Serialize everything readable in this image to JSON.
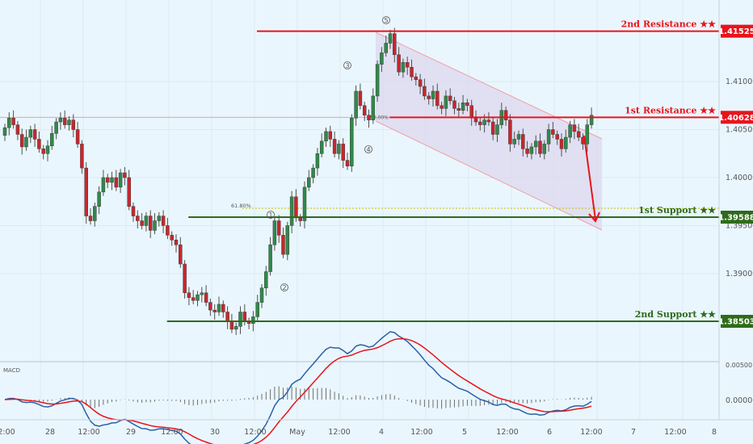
{
  "chart_data": {
    "type": "candlestick",
    "price_axis": {
      "min": 1.3815,
      "max": 1.4185,
      "ticks": [
        "1.41000",
        "1.40500",
        "1.40000",
        "1.39500",
        "1.39000"
      ]
    },
    "time_axis": {
      "labels": [
        "2:00",
        "28",
        "12:00",
        "29",
        "12:00",
        "30",
        "12:00",
        "May",
        "12:00",
        "4",
        "12:00",
        "5",
        "12:00",
        "6",
        "12:00",
        "7",
        "12:00",
        "8"
      ]
    },
    "levels": [
      {
        "name": "2nd Resistance ★★",
        "value": 1.41525,
        "label": "1.41525",
        "color": "#e8141c",
        "from_bar": 60
      },
      {
        "name": "1st Resistance ★★",
        "value": 1.40628,
        "label": "1.40628",
        "color": "#e8141c",
        "from_bar": 91
      },
      {
        "name": "1st Support ★★",
        "value": 1.39588,
        "label": "1.39588",
        "color": "#2e6b1a",
        "from_bar": 44
      },
      {
        "name": "2nd Support ★★",
        "value": 1.38503,
        "label": "1.38503",
        "color": "#2e6b1a",
        "from_bar": 39
      }
    ],
    "fib_label": "61.80%",
    "fib_level": 1.3968,
    "fib_mid_label": "50.00%",
    "wave_labels": [
      "1",
      "2",
      "3",
      "4",
      "5"
    ],
    "closes": [
      1.4052,
      1.4062,
      1.4055,
      1.4045,
      1.4032,
      1.4042,
      1.405,
      1.404,
      1.403,
      1.4025,
      1.4033,
      1.4046,
      1.4058,
      1.4062,
      1.4055,
      1.406,
      1.405,
      1.4035,
      1.401,
      1.396,
      1.3955,
      1.397,
      1.3985,
      1.4,
      1.3995,
      1.4,
      1.399,
      1.4005,
      1.4,
      1.397,
      1.396,
      1.3955,
      1.395,
      1.396,
      1.3945,
      1.3955,
      1.396,
      1.395,
      1.394,
      1.3935,
      1.393,
      1.391,
      1.388,
      1.3875,
      1.3872,
      1.3878,
      1.388,
      1.387,
      1.3862,
      1.386,
      1.3868,
      1.386,
      1.385,
      1.3842,
      1.3845,
      1.386,
      1.385,
      1.3848,
      1.3855,
      1.387,
      1.3885,
      1.3902,
      1.393,
      1.3955,
      1.394,
      1.392,
      1.395,
      1.398,
      1.3958,
      1.3955,
      1.399,
      1.4,
      1.401,
      1.4025,
      1.4038,
      1.4048,
      1.404,
      1.4025,
      1.4035,
      1.4018,
      1.4012,
      1.4062,
      1.409,
      1.4075,
      1.4065,
      1.406,
      1.4085,
      1.4118,
      1.413,
      1.414,
      1.415,
      1.4128,
      1.411,
      1.412,
      1.4115,
      1.4105,
      1.4102,
      1.4095,
      1.4085,
      1.4082,
      1.409,
      1.4075,
      1.4072,
      1.4085,
      1.408,
      1.4072,
      1.407,
      1.4078,
      1.4075,
      1.4062,
      1.4058,
      1.4055,
      1.406,
      1.4058,
      1.4045,
      1.4055,
      1.407,
      1.406,
      1.4035,
      1.404,
      1.4045,
      1.403,
      1.4025,
      1.4032,
      1.4038,
      1.4025,
      1.4035,
      1.405,
      1.4045,
      1.404,
      1.403,
      1.4042,
      1.4055,
      1.4048,
      1.4042,
      1.4035,
      1.4055,
      1.4065
    ]
  }
}
